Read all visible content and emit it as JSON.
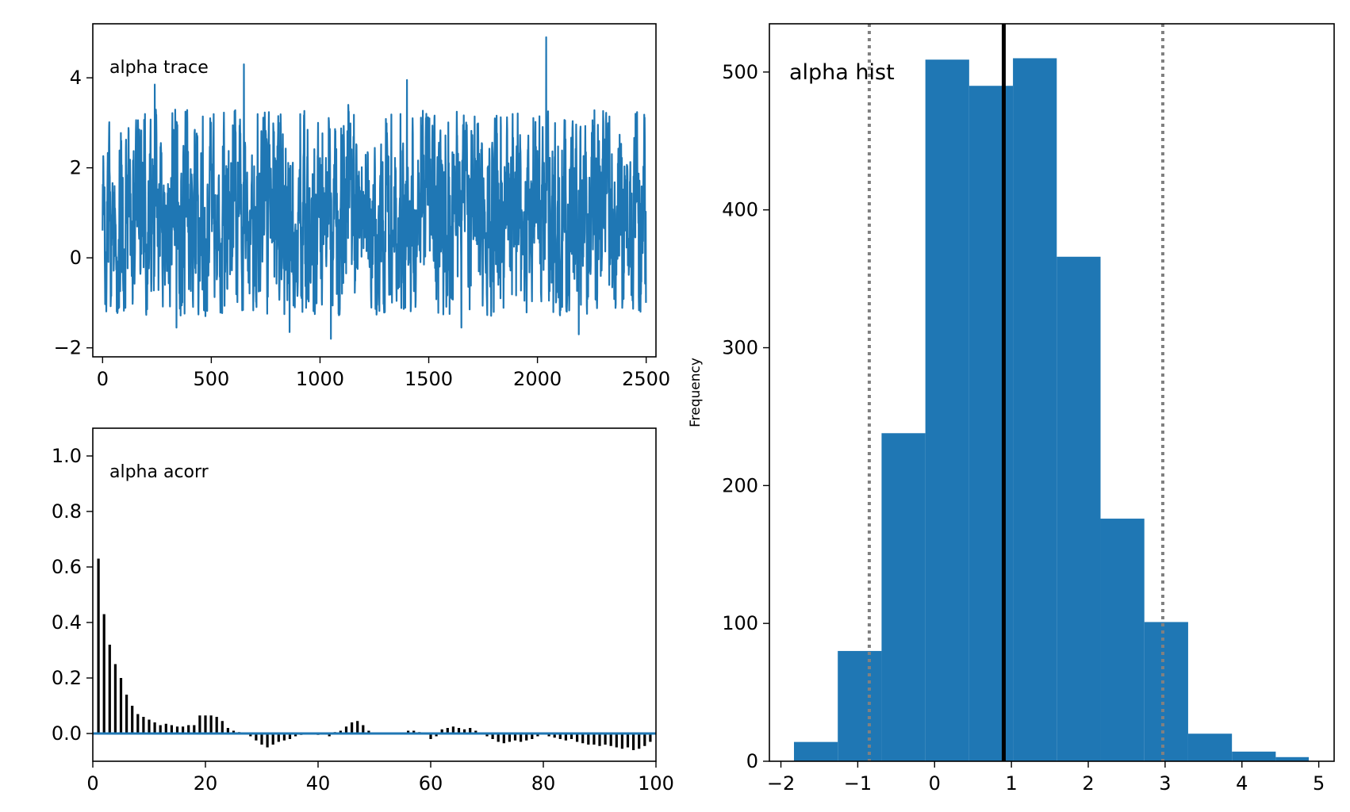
{
  "chart_data": [
    {
      "id": "trace",
      "type": "line",
      "title": "alpha trace",
      "xlim": [
        -45,
        2545
      ],
      "ylim": [
        -2.2,
        5.2
      ],
      "xticks": [
        0,
        500,
        1000,
        1500,
        2000,
        2500
      ],
      "xtick_labels": [
        "0",
        "500",
        "1000",
        "1500",
        "2000",
        "2500"
      ],
      "yticks": [
        -2,
        0,
        2,
        4
      ],
      "ytick_labels": [
        "−2",
        "0",
        "2",
        "4"
      ],
      "n_samples": 2500,
      "color": "#1f77b4",
      "peaks": [
        {
          "x": 10,
          "y": 0.0
        },
        {
          "x": 240,
          "y": 3.85
        },
        {
          "x": 340,
          "y": -1.55
        },
        {
          "x": 650,
          "y": 4.3
        },
        {
          "x": 860,
          "y": -1.65
        },
        {
          "x": 1050,
          "y": -1.8
        },
        {
          "x": 1130,
          "y": 3.4
        },
        {
          "x": 1400,
          "y": 3.95
        },
        {
          "x": 1650,
          "y": -1.55
        },
        {
          "x": 2040,
          "y": 4.9
        },
        {
          "x": 2190,
          "y": -1.7
        },
        {
          "x": 2500,
          "y": -1.0
        }
      ]
    },
    {
      "id": "acorr",
      "type": "bar",
      "title": "alpha acorr",
      "xlim": [
        0,
        100
      ],
      "ylim": [
        -0.1,
        1.1
      ],
      "xticks": [
        0,
        20,
        40,
        60,
        80,
        100
      ],
      "xtick_labels": [
        "0",
        "20",
        "40",
        "60",
        "80",
        "100"
      ],
      "yticks": [
        0.0,
        0.2,
        0.4,
        0.6,
        0.8,
        1.0
      ],
      "ytick_labels": [
        "0.0",
        "0.2",
        "0.4",
        "0.6",
        "0.8",
        "1.0"
      ],
      "bar_color": "#000000",
      "zero_line_color": "#1f77b4",
      "lags": [
        1,
        2,
        3,
        4,
        5,
        6,
        7,
        8,
        9,
        10,
        11,
        12,
        13,
        14,
        15,
        16,
        17,
        18,
        19,
        20,
        21,
        22,
        23,
        24,
        25,
        26,
        27,
        28,
        29,
        30,
        31,
        32,
        33,
        34,
        35,
        36,
        37,
        38,
        39,
        40,
        41,
        42,
        43,
        44,
        45,
        46,
        47,
        48,
        49,
        50,
        51,
        52,
        53,
        54,
        55,
        56,
        57,
        58,
        59,
        60,
        61,
        62,
        63,
        64,
        65,
        66,
        67,
        68,
        69,
        70,
        71,
        72,
        73,
        74,
        75,
        76,
        77,
        78,
        79,
        80,
        81,
        82,
        83,
        84,
        85,
        86,
        87,
        88,
        89,
        90,
        91,
        92,
        93,
        94,
        95,
        96,
        97,
        98,
        99
      ],
      "values": [
        0.63,
        0.43,
        0.32,
        0.25,
        0.2,
        0.14,
        0.1,
        0.07,
        0.06,
        0.05,
        0.04,
        0.03,
        0.035,
        0.03,
        0.025,
        0.025,
        0.03,
        0.03,
        0.065,
        0.065,
        0.065,
        0.06,
        0.045,
        0.02,
        0.01,
        0.005,
        0.0,
        -0.01,
        -0.025,
        -0.04,
        -0.05,
        -0.04,
        -0.03,
        -0.025,
        -0.02,
        -0.01,
        -0.005,
        0.0,
        0.0,
        -0.005,
        0.0,
        -0.01,
        0.005,
        0.01,
        0.025,
        0.04,
        0.045,
        0.03,
        0.01,
        0.0,
        0.0,
        0.0,
        0.0,
        0.0,
        0.0,
        0.01,
        0.01,
        0.005,
        0.0,
        -0.02,
        -0.01,
        0.015,
        0.02,
        0.025,
        0.02,
        0.015,
        0.02,
        0.01,
        0.0,
        -0.01,
        -0.02,
        -0.03,
        -0.035,
        -0.03,
        -0.025,
        -0.03,
        -0.025,
        -0.02,
        -0.01,
        0.0,
        -0.01,
        -0.015,
        -0.02,
        -0.025,
        -0.02,
        -0.03,
        -0.035,
        -0.04,
        -0.04,
        -0.045,
        -0.04,
        -0.045,
        -0.05,
        -0.055,
        -0.05,
        -0.06,
        -0.055,
        -0.045,
        -0.03
      ]
    },
    {
      "id": "hist",
      "type": "bar",
      "title": "alpha hist",
      "ylabel": "Frequency",
      "xlim": [
        -2.15,
        5.2
      ],
      "ylim": [
        0,
        535
      ],
      "xticks": [
        -2,
        -1,
        0,
        1,
        2,
        3,
        4,
        5
      ],
      "xtick_labels": [
        "−2",
        "−1",
        "0",
        "1",
        "2",
        "3",
        "4",
        "5"
      ],
      "yticks": [
        0,
        100,
        200,
        300,
        400,
        500
      ],
      "ytick_labels": [
        "0",
        "100",
        "200",
        "300",
        "400",
        "500"
      ],
      "bin_edges": [
        -1.83,
        -1.26,
        -0.69,
        -0.12,
        0.45,
        1.02,
        1.59,
        2.16,
        2.73,
        3.3,
        3.87,
        4.44,
        4.87
      ],
      "counts": [
        14,
        80,
        238,
        509,
        490,
        510,
        366,
        176,
        101,
        20,
        7,
        3
      ],
      "bar_color": "#1f77b4",
      "mean": 0.9,
      "mean_line_color": "#000000",
      "interval": [
        -0.85,
        2.97
      ],
      "interval_line_color": "#808080"
    }
  ]
}
